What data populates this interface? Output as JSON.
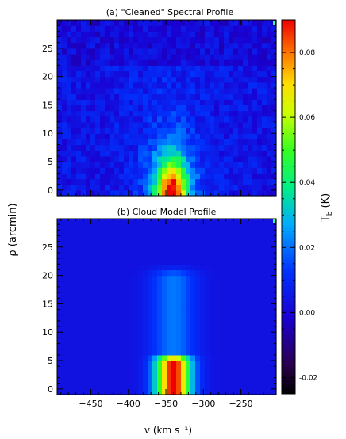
{
  "chart_data": [
    {
      "type": "heatmap",
      "title": "(a) \"Cleaned\" Spectral Profile",
      "xlabel": "",
      "ylabel": "",
      "xlim": [
        -495,
        -203
      ],
      "ylim": [
        -1,
        30
      ],
      "x_ticks": [
        -450,
        -400,
        -350,
        -300,
        -250
      ],
      "y_ticks": [
        0,
        5,
        10,
        15,
        20,
        25
      ],
      "x_tick_labels": [],
      "y_tick_labels": [
        "0",
        "5",
        "10",
        "15",
        "20",
        "25"
      ],
      "peak": {
        "v": -342,
        "rho": 0,
        "value": 0.085
      },
      "outer_boundary_rho": 22
    },
    {
      "type": "heatmap",
      "title": "(b) Cloud Model Profile",
      "xlabel": "v (km s⁻¹)",
      "ylabel": "ρ (arcmin)",
      "xlim": [
        -495,
        -203
      ],
      "ylim": [
        -1,
        30
      ],
      "x_ticks": [
        -450,
        -400,
        -350,
        -300,
        -250
      ],
      "y_ticks": [
        0,
        5,
        10,
        15,
        20,
        25
      ],
      "x_tick_labels": [
        "−450",
        "−400",
        "−350",
        "−300",
        "−250"
      ],
      "y_tick_labels": [
        "0",
        "5",
        "10",
        "15",
        "20",
        "25"
      ],
      "peak": {
        "v": -340,
        "rho": 0,
        "value": 0.088
      },
      "outer_boundary_rho": 22
    }
  ],
  "colorbar": {
    "label": "T",
    "label_sub": "b",
    "label_unit": "(K)",
    "range": [
      -0.025,
      0.09
    ],
    "ticks": [
      "-0.02",
      "0.00",
      "0.02",
      "0.04",
      "0.06",
      "0.08"
    ],
    "tick_values": [
      -0.02,
      0.0,
      0.02,
      0.04,
      0.06,
      0.08
    ],
    "colormap": "rainbow"
  }
}
